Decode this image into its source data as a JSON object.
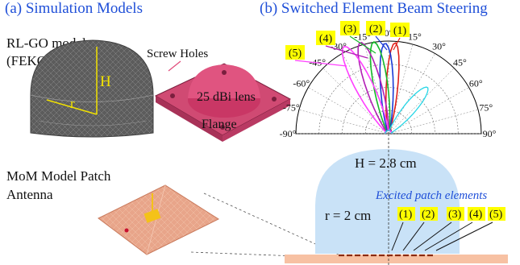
{
  "titles": {
    "left": "(a) Simulation Models",
    "right": "(b) Switched Element Beam Steering"
  },
  "left_panel": {
    "rlgo_line1": "RL-GO model",
    "rlgo_line2": "(FEKO)",
    "dim_h": "H",
    "dim_r": "r",
    "screw_holes": "Screw Holes",
    "lens_text": "25 dBi lens",
    "flange": "Flange",
    "mom_line1": "MoM Model Patch",
    "mom_line2": "Antenna"
  },
  "polar": {
    "angle_labels": [
      "-90°",
      "-75°",
      "-60°",
      "-45°",
      "-30°",
      "-15°",
      "0°",
      "15°",
      "30°",
      "45°",
      "60°",
      "75°",
      "90°"
    ],
    "beam_tags": [
      "(1)",
      "(2)",
      "(3)",
      "(4)",
      "(5)"
    ],
    "beam_colors": [
      "#e0201a",
      "#1a3ad6",
      "#16b92a",
      "#b21fb5",
      "#ff40ff"
    ],
    "beam_angles_deg": [
      4,
      -2,
      -9,
      -17,
      -27
    ],
    "extra_trace_color": "#27d6e6"
  },
  "lens_section": {
    "h_label": "H = 2.8 cm",
    "r_label": "r = 2 cm",
    "excited_label": "Excited patch elements",
    "element_tags": [
      "(1)",
      "(2)",
      "(3)",
      "(4)",
      "(5)"
    ]
  },
  "colors": {
    "title_blue": "#1f4fd8",
    "tag_yellow": "#ffff00",
    "lens_blue": "#c9e2f7",
    "substrate": "#f7c1a3",
    "patch_dash": "#8a2a10"
  }
}
